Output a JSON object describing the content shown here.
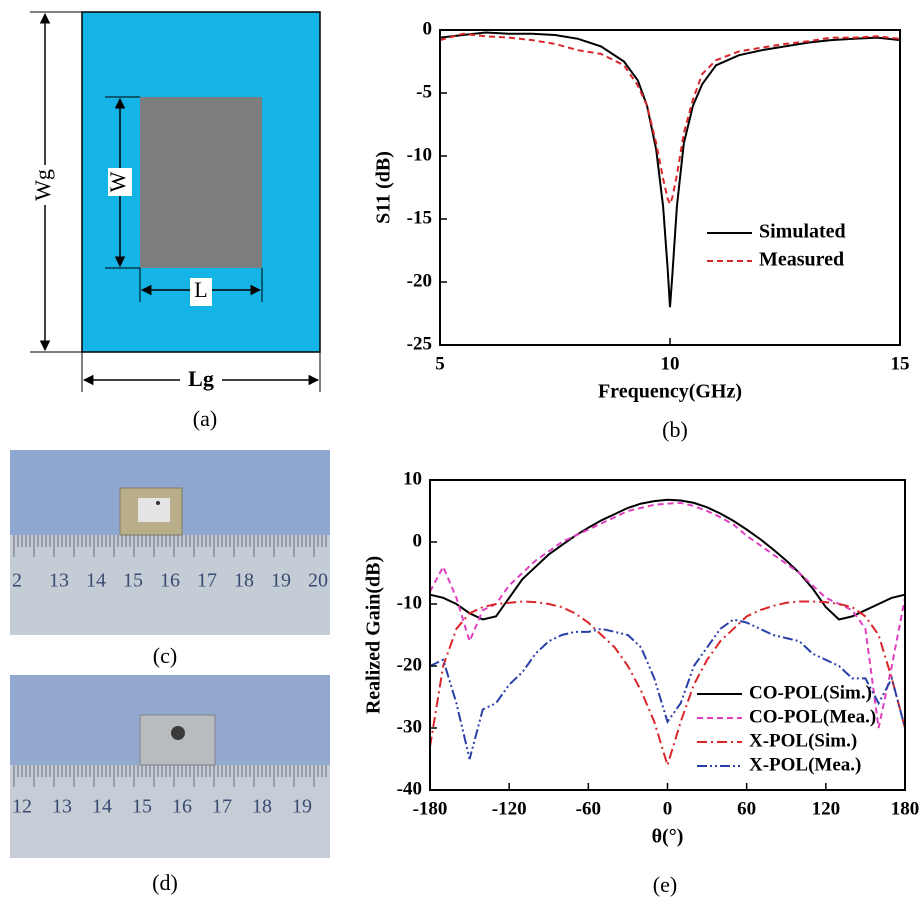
{
  "diagram": {
    "outer_width": "Wg",
    "inner_width": "W",
    "inner_length": "L",
    "outer_length": "Lg"
  },
  "captions": {
    "a": "(a)",
    "b": "(b)",
    "c": "(c)",
    "d": "(d)",
    "e": "(e)"
  },
  "photo_c": {
    "ruler_labels": [
      "2",
      "13",
      "14",
      "15",
      "16",
      "17",
      "18",
      "19",
      "20"
    ]
  },
  "photo_d": {
    "ruler_labels": [
      "12",
      "13",
      "14",
      "15",
      "16",
      "17",
      "18",
      "19"
    ]
  },
  "chart_data": [
    {
      "type": "line",
      "x_label": "Frequency(GHz)",
      "y_label": "S11 (dB)",
      "x": [
        5,
        5.5,
        6,
        6.5,
        7,
        7.5,
        8,
        8.5,
        9,
        9.3,
        9.5,
        9.7,
        9.85,
        9.95,
        10,
        10.05,
        10.15,
        10.3,
        10.5,
        10.7,
        11,
        11.5,
        12,
        12.5,
        13,
        13.5,
        14,
        14.5,
        15
      ],
      "series": [
        {
          "name": "Simulated",
          "color": "#000000",
          "line_style": "solid",
          "values": [
            -0.6,
            -0.4,
            -0.2,
            -0.3,
            -0.3,
            -0.4,
            -0.7,
            -1.3,
            -2.5,
            -4,
            -6,
            -9.5,
            -14,
            -19,
            -22,
            -19.5,
            -14,
            -9,
            -6,
            -4.3,
            -2.8,
            -2,
            -1.6,
            -1.3,
            -1,
            -0.8,
            -0.7,
            -0.6,
            -0.8
          ]
        },
        {
          "name": "Measured",
          "color": "#d9262b",
          "line_style": "dashed",
          "values": [
            -0.8,
            -0.3,
            -0.5,
            -0.6,
            -0.8,
            -1.1,
            -1.6,
            -1.9,
            -2.8,
            -4.4,
            -6,
            -9,
            -11.8,
            -13.4,
            -13.8,
            -13.3,
            -11.5,
            -8.2,
            -5.5,
            -3.5,
            -2.4,
            -1.7,
            -1.4,
            -1.1,
            -0.9,
            -0.6,
            -0.6,
            -0.5,
            -0.7
          ]
        }
      ],
      "xlim": [
        5,
        15
      ],
      "xticks": [
        5,
        10,
        15
      ],
      "ylim": [
        -25,
        0
      ],
      "yticks": [
        -25,
        -20,
        -15,
        -10,
        -5,
        0
      ],
      "legend": "lower right"
    },
    {
      "type": "line",
      "x_label": "θ(°)",
      "y_label": "Realized Gain(dB)",
      "x": [
        -180,
        -170,
        -160,
        -150,
        -140,
        -130,
        -120,
        -110,
        -100,
        -90,
        -80,
        -70,
        -60,
        -50,
        -40,
        -30,
        -20,
        -10,
        0,
        10,
        20,
        30,
        40,
        50,
        60,
        70,
        80,
        90,
        100,
        110,
        120,
        130,
        140,
        150,
        160,
        170,
        180
      ],
      "series": [
        {
          "name": "CO-POL(Sim.)",
          "color": "#000000",
          "line_style": "solid",
          "values": [
            -8.5,
            -9,
            -10,
            -11.5,
            -12.5,
            -12,
            -9,
            -6,
            -4,
            -2,
            -0.5,
            1,
            2.3,
            3.5,
            4.5,
            5.5,
            6.2,
            6.6,
            6.8,
            6.7,
            6.3,
            5.6,
            4.6,
            3.4,
            2,
            0.5,
            -1.2,
            -3,
            -5,
            -7.5,
            -10.5,
            -12.5,
            -12,
            -11,
            -10,
            -9,
            -8.5
          ]
        },
        {
          "name": "CO-POL(Mea.)",
          "color": "#e040c0",
          "line_style": "dashed",
          "values": [
            -8,
            -4,
            -9,
            -16,
            -11,
            -10,
            -7,
            -5,
            -3,
            -1.5,
            0,
            1,
            2,
            3,
            4,
            5,
            5.5,
            6,
            6.2,
            6.3,
            5.8,
            5,
            4,
            2.8,
            1,
            -0.5,
            -2,
            -3.5,
            -5,
            -7,
            -9,
            -10,
            -11,
            -14,
            -30,
            -20,
            -9
          ]
        },
        {
          "name": "X-POL(Sim.)",
          "color": "#d9262b",
          "line_style": "dashdot",
          "values": [
            -33,
            -20,
            -14,
            -11.5,
            -10.5,
            -10,
            -9.8,
            -9.6,
            -9.7,
            -10,
            -10.5,
            -11.5,
            -13,
            -15,
            -17,
            -20,
            -24,
            -29,
            -36,
            -29,
            -23,
            -19,
            -16,
            -14,
            -12,
            -11,
            -10.3,
            -9.8,
            -9.6,
            -9.6,
            -9.7,
            -10,
            -10.5,
            -12,
            -15,
            -22,
            -30
          ]
        },
        {
          "name": "X-POL(Mea.)",
          "color": "#2a3fa8",
          "line_style": "dashdotdot",
          "values": [
            -20,
            -19,
            -26,
            -35,
            -27,
            -26,
            -23,
            -21,
            -18,
            -16,
            -15,
            -14.5,
            -14.5,
            -14,
            -14.5,
            -15,
            -17,
            -22,
            -29,
            -26,
            -20,
            -17,
            -14,
            -12.5,
            -13,
            -14,
            -15,
            -15.5,
            -16,
            -18,
            -19,
            -20,
            -22,
            -22,
            -26,
            -22,
            -30
          ]
        }
      ],
      "xlim": [
        -180,
        180
      ],
      "xticks": [
        -180,
        -120,
        -60,
        0,
        60,
        120,
        180
      ],
      "ylim": [
        -40,
        10
      ],
      "yticks": [
        -40,
        -30,
        -20,
        -10,
        0,
        10
      ],
      "legend": "lower right"
    }
  ]
}
